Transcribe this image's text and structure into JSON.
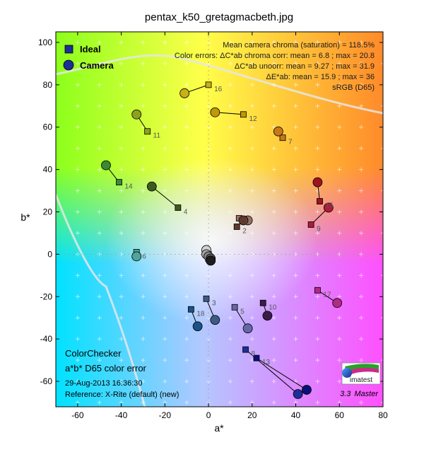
{
  "chart_data": {
    "type": "scatter",
    "title": "pentax_k50_gretagmacbeth.jpg",
    "xlabel": "a*",
    "ylabel": "b*",
    "xlim": [
      -70,
      80
    ],
    "ylim": [
      -72,
      105
    ],
    "x_ticks": [
      -60,
      -40,
      -20,
      0,
      20,
      40,
      60,
      80
    ],
    "y_ticks": [
      -60,
      -40,
      -20,
      0,
      20,
      40,
      60,
      80,
      100
    ],
    "grid": true,
    "legend": {
      "position": "top-left",
      "entries": [
        "Ideal",
        "Camera"
      ]
    },
    "stats": [
      "Mean camera chroma (saturation) = 118.5%",
      "Color errors:  ΔC*ab chroma corr:  mean = 6.8 ;  max = 20.8",
      "ΔC*ab unoorr:  mean = 9.27 ;  max = 31.9",
      "ΔE*ab:  mean = 15.9 ;  max = 36",
      "sRGB (D65)"
    ],
    "info": {
      "heading1": "ColorChecker",
      "heading2": "a*b* D65 color error",
      "date": "29-Aug-2013 16:36:30",
      "reference": "Reference: X-Rite (default) (new)"
    },
    "branding": {
      "logo_text": "imatest",
      "version": "3.3",
      "edition": "Master"
    },
    "patches": [
      {
        "id": 1,
        "label": "1",
        "ideal": [
          14,
          17
        ],
        "camera": [
          18,
          16
        ],
        "color": "#9a7062"
      },
      {
        "id": 2,
        "label": "2",
        "ideal": [
          13,
          13
        ],
        "camera": [
          16,
          16
        ],
        "color": "#5e3a2c"
      },
      {
        "id": 3,
        "label": "3",
        "ideal": [
          -1,
          -21
        ],
        "camera": [
          3,
          -31
        ],
        "color": "#3c5b86"
      },
      {
        "id": 4,
        "label": "4",
        "ideal": [
          -14,
          22
        ],
        "camera": [
          -26,
          32
        ],
        "color": "#3f5a1e"
      },
      {
        "id": 5,
        "label": "5",
        "ideal": [
          12,
          -25
        ],
        "camera": [
          18,
          -35
        ],
        "color": "#6667a6"
      },
      {
        "id": 6,
        "label": "6",
        "ideal": [
          -33,
          1
        ],
        "camera": [
          -33,
          -1
        ],
        "color": "#4ea59a"
      },
      {
        "id": 7,
        "label": "7",
        "ideal": [
          34,
          55
        ],
        "camera": [
          32,
          58
        ],
        "color": "#c87818"
      },
      {
        "id": 8,
        "label": "8",
        "ideal": [
          17,
          -45
        ],
        "camera": [
          41,
          -66
        ],
        "color": "#1e2d9a"
      },
      {
        "id": 9,
        "label": "9",
        "ideal": [
          47,
          14
        ],
        "camera": [
          55,
          22
        ],
        "color": "#b01b38"
      },
      {
        "id": 10,
        "label": "10",
        "ideal": [
          25,
          -23
        ],
        "camera": [
          27,
          -29
        ],
        "color": "#3a1c48"
      },
      {
        "id": 11,
        "label": "11",
        "ideal": [
          -28,
          58
        ],
        "camera": [
          -33,
          66
        ],
        "color": "#8ca21e"
      },
      {
        "id": 12,
        "label": "12",
        "ideal": [
          16,
          66
        ],
        "camera": [
          3,
          67
        ],
        "color": "#c09808"
      },
      {
        "id": 13,
        "label": "13",
        "ideal": [
          22,
          -49
        ],
        "camera": [
          45,
          -64
        ],
        "color": "#0a0f7a"
      },
      {
        "id": 14,
        "label": "14",
        "ideal": [
          -41,
          34
        ],
        "camera": [
          -47,
          42
        ],
        "color": "#3a8a32"
      },
      {
        "id": 15,
        "label": "15",
        "ideal": [
          51,
          25
        ],
        "camera": [
          50,
          34
        ],
        "color": "#9e1420"
      },
      {
        "id": 16,
        "label": "16",
        "ideal": [
          0,
          80
        ],
        "camera": [
          -11,
          76
        ],
        "color": "#c8b018"
      },
      {
        "id": 17,
        "label": "17",
        "ideal": [
          50,
          -17
        ],
        "camera": [
          59,
          -23
        ],
        "color": "#b02a88"
      },
      {
        "id": 18,
        "label": "18",
        "ideal": [
          -8,
          -26
        ],
        "camera": [
          -5,
          -34
        ],
        "color": "#18538a"
      },
      {
        "id": 19,
        "label": "",
        "ideal": [
          0,
          0
        ],
        "camera": [
          -1,
          2
        ],
        "color": "#d2d2d2"
      },
      {
        "id": 20,
        "label": "",
        "ideal": [
          0,
          -1
        ],
        "camera": [
          -1,
          0
        ],
        "color": "#a8a8a8"
      },
      {
        "id": 21,
        "label": "",
        "ideal": [
          0,
          -1
        ],
        "camera": [
          0,
          -1
        ],
        "color": "#848484"
      },
      {
        "id": 22,
        "label": "",
        "ideal": [
          0,
          -2
        ],
        "camera": [
          1,
          -2
        ],
        "color": "#5c5c5c"
      },
      {
        "id": 23,
        "label": "",
        "ideal": [
          0,
          -2
        ],
        "camera": [
          1,
          -3
        ],
        "color": "#383838"
      },
      {
        "id": 24,
        "label": "",
        "ideal": [
          0,
          -2
        ],
        "camera": [
          1,
          -3
        ],
        "color": "#1e1e1e"
      }
    ]
  }
}
